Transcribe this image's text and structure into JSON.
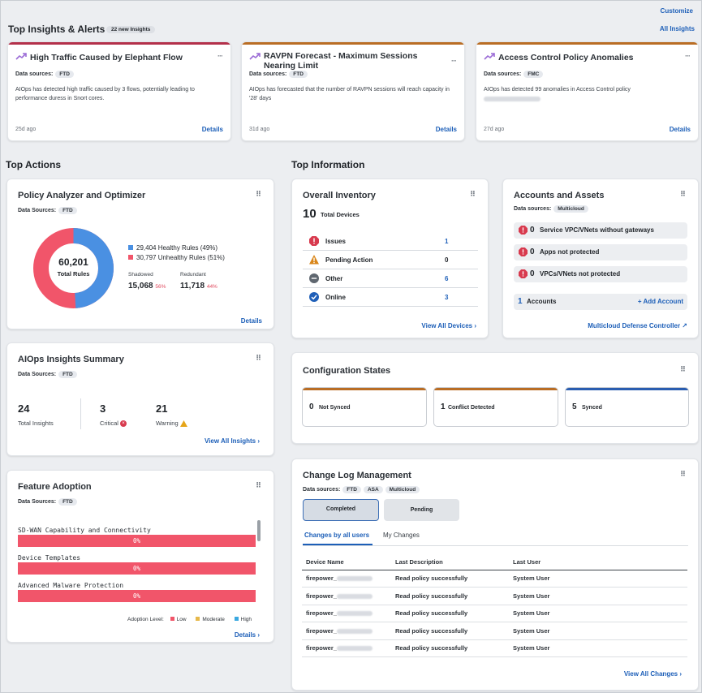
{
  "header": {
    "customize": "Customize",
    "all_insights": "All Insights",
    "title": "Top Insights & Alerts",
    "new_badge": "22 new Insights"
  },
  "insights": [
    {
      "title": "High Traffic Caused by Elephant Flow",
      "title2": "",
      "ds_label": "Data sources:",
      "ds": "FTD",
      "desc": "AIOps has detected high traffic caused by 3 flows, potentially leading to performance duress in Snort cores.",
      "age": "25d ago",
      "details": "Details",
      "color": "#b3304a"
    },
    {
      "title": "RAVPN Forecast - Maximum Sessions",
      "title2": "Nearing Limit",
      "ds_label": "Data sources:",
      "ds": "FTD",
      "desc": "AIOps has forecasted that the number of RAVPN sessions will reach capacity in '28' days",
      "age": "31d ago",
      "details": "Details",
      "color": "#b96d24"
    },
    {
      "title": "Access Control Policy Anomalies",
      "title2": "",
      "ds_label": "Data sources:",
      "ds": "FMC",
      "desc": "AIOps has detected 99 anomalies in Access Control policy",
      "age": "27d ago",
      "details": "Details",
      "color": "#b96d24"
    }
  ],
  "sections": {
    "top_actions": "Top Actions",
    "top_information": "Top Information"
  },
  "policy": {
    "title": "Policy Analyzer and Optimizer",
    "ds_label": "Data Sources:",
    "ds": "FTD",
    "total": "60,201",
    "total_label": "Total Rules",
    "healthy": "29,404 Healthy Rules (49%)",
    "unhealthy": "30,797 Unhealthy Rules (51%)",
    "healthy_pct": 49,
    "healthy_color": "#4a90e2",
    "unhealthy_color": "#f1556a",
    "shadowed_label": "Shadowed",
    "shadowed": "15,068",
    "shadowed_pct": "56%",
    "redundant_label": "Redundant",
    "redundant": "11,718",
    "redundant_pct": "44%",
    "details": "Details"
  },
  "aiops": {
    "title": "AIOps Insights Summary",
    "ds_label": "Data Sources:",
    "ds": "FTD",
    "total": "24",
    "total_label": "Total Insights",
    "critical": "3",
    "critical_label": "Critical",
    "warning": "21",
    "warning_label": "Warning",
    "view_all": "View All Insights"
  },
  "feature": {
    "title": "Feature Adoption",
    "ds_label": "Data Sources:",
    "ds": "FTD",
    "items": [
      {
        "label": "SD-WAN Capability and Connectivity",
        "value": "0%"
      },
      {
        "label": "Device Templates",
        "value": "0%"
      },
      {
        "label": "Advanced Malware Protection",
        "value": "0%"
      }
    ],
    "legend_title": "Adoption Level:",
    "low": "Low",
    "moderate": "Moderate",
    "high": "High",
    "details": "Details"
  },
  "inventory": {
    "title": "Overall Inventory",
    "total": "10",
    "total_label": "Total Devices",
    "rows": [
      {
        "label": "Issues",
        "value": "1"
      },
      {
        "label": "Pending Action",
        "value": "0"
      },
      {
        "label": "Other",
        "value": "6"
      },
      {
        "label": "Online",
        "value": "3"
      }
    ],
    "view_all": "View All Devices"
  },
  "accounts": {
    "title": "Accounts and Assets",
    "ds_label": "Data sources:",
    "ds": "Multicloud",
    "rows": [
      {
        "num": "0",
        "label": "Service VPC/VNets without gateways"
      },
      {
        "num": "0",
        "label": "Apps not protected"
      },
      {
        "num": "0",
        "label": "VPCs/VNets not protected"
      }
    ],
    "accounts_num": "1",
    "accounts_label": "Accounts",
    "add": "Add Account",
    "controller": "Multicloud Defense Controller"
  },
  "config": {
    "title": "Configuration States",
    "items": [
      {
        "num": "0",
        "label": "Not Synced",
        "color": "#b96d24"
      },
      {
        "num": "1",
        "label": "Conflict Detected",
        "color": "#b96d24"
      },
      {
        "num": "5",
        "label": "Synced",
        "color": "#2a5db0"
      }
    ]
  },
  "changelog": {
    "title": "Change Log Management",
    "ds_label": "Data sources:",
    "ds": [
      "FTD",
      "ASA",
      "Multicloud"
    ],
    "btn_completed": "Completed",
    "btn_pending": "Pending",
    "tab_all": "Changes by all users",
    "tab_mine": "My Changes",
    "columns": [
      "Device Name",
      "Last Description",
      "Last User"
    ],
    "rows": [
      {
        "device": "firepower_",
        "desc": "Read policy successfully",
        "user": "System User"
      },
      {
        "device": "firepower_",
        "desc": "Read policy successfully",
        "user": "System User"
      },
      {
        "device": "firepower_",
        "desc": "Read policy successfully",
        "user": "System User"
      },
      {
        "device": "firepower_",
        "desc": "Read policy successfully",
        "user": "System User"
      },
      {
        "device": "firepower_",
        "desc": "Read policy successfully",
        "user": "System User"
      }
    ],
    "view_all": "View All Changes"
  }
}
